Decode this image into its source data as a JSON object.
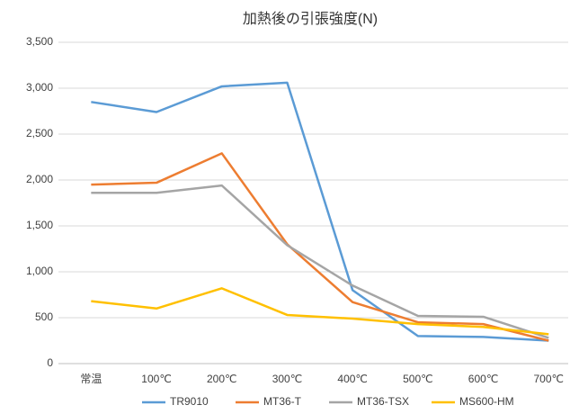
{
  "chart_data": {
    "type": "line",
    "title": "加熱後の引張強度(N)",
    "categories": [
      "常温",
      "100℃",
      "200℃",
      "300℃",
      "400℃",
      "500℃",
      "600℃",
      "700℃"
    ],
    "series": [
      {
        "name": "TR9010",
        "color": "#5b9bd5",
        "values": [
          2850,
          2740,
          3020,
          3060,
          800,
          300,
          290,
          250
        ]
      },
      {
        "name": "MT36-T",
        "color": "#ed7d31",
        "values": [
          1950,
          1970,
          2290,
          1300,
          670,
          450,
          430,
          250
        ]
      },
      {
        "name": "MT36-TSX",
        "color": "#a5a5a5",
        "values": [
          1860,
          1860,
          1940,
          1290,
          850,
          520,
          510,
          280
        ]
      },
      {
        "name": "MS600-HM",
        "color": "#ffc000",
        "values": [
          680,
          600,
          820,
          530,
          490,
          430,
          400,
          320
        ]
      }
    ],
    "ylim": [
      0,
      3500
    ],
    "yticks": [
      0,
      500,
      {
        "value": 1000,
        "label": "1,000"
      },
      {
        "value": 1500,
        "label": "1,500"
      },
      {
        "value": 2000,
        "label": "2,000"
      },
      {
        "value": 2500,
        "label": "2,500"
      },
      {
        "value": 3000,
        "label": "3,000"
      },
      {
        "value": 3500,
        "label": "3,500"
      }
    ],
    "grid": true,
    "legend": "bottom"
  }
}
